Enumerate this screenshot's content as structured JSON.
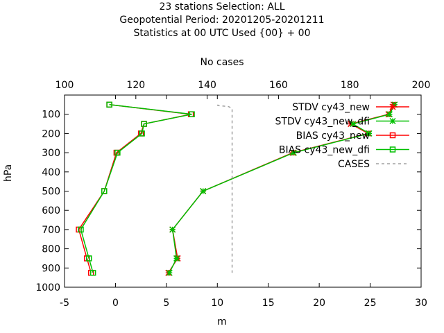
{
  "chart_data": {
    "type": "line",
    "title": [
      "23 stations Selection: ALL",
      "Geopotential  Period: 20201205-20201211",
      "Statistics at 00 UTC  Used {00} + 00"
    ],
    "xlabel": "m",
    "ylabel": "hPa",
    "x2label": "No cases",
    "xlim": [
      -5,
      30
    ],
    "x2lim": [
      100,
      200
    ],
    "ylim": [
      1000,
      0
    ],
    "xticks": [
      -5,
      0,
      5,
      10,
      15,
      20,
      25,
      30
    ],
    "x2ticks": [
      100,
      120,
      140,
      160,
      180,
      200
    ],
    "yticks": [
      100,
      200,
      300,
      400,
      500,
      600,
      700,
      800,
      900,
      1000
    ],
    "legend_position": "top-right",
    "series": [
      {
        "name": "STDV cy43_new",
        "axis": "x",
        "color": "#ff0000",
        "marker": "star",
        "dash": "solid",
        "points": [
          [
            27.3,
            50
          ],
          [
            26.8,
            100
          ],
          [
            23.1,
            150
          ],
          [
            24.8,
            200
          ],
          [
            17.4,
            300
          ],
          [
            8.6,
            500
          ],
          [
            5.6,
            700
          ],
          [
            6.1,
            850
          ],
          [
            5.2,
            925
          ]
        ]
      },
      {
        "name": "STDV cy43_new_dfi",
        "axis": "x",
        "color": "#00c000",
        "marker": "star",
        "dash": "solid",
        "points": [
          [
            27.4,
            50
          ],
          [
            26.9,
            100
          ],
          [
            23.3,
            150
          ],
          [
            24.9,
            200
          ],
          [
            17.5,
            300
          ],
          [
            8.6,
            500
          ],
          [
            5.6,
            700
          ],
          [
            6.0,
            850
          ],
          [
            5.3,
            925
          ]
        ]
      },
      {
        "name": "BIAS cy43_new",
        "axis": "x",
        "color": "#ff0000",
        "marker": "square",
        "dash": "solid",
        "points": [
          [
            -0.6,
            50
          ],
          [
            7.4,
            100
          ],
          [
            2.8,
            150
          ],
          [
            2.5,
            200
          ],
          [
            0.1,
            300
          ],
          [
            -1.1,
            500
          ],
          [
            -3.6,
            700
          ],
          [
            -2.8,
            850
          ],
          [
            -2.4,
            925
          ]
        ]
      },
      {
        "name": "BIAS cy43_new_dfi",
        "axis": "x",
        "color": "#00c000",
        "marker": "square",
        "dash": "solid",
        "points": [
          [
            -0.6,
            50
          ],
          [
            7.5,
            100
          ],
          [
            2.8,
            150
          ],
          [
            2.6,
            200
          ],
          [
            0.2,
            300
          ],
          [
            -1.1,
            500
          ],
          [
            -3.4,
            700
          ],
          [
            -2.6,
            850
          ],
          [
            -2.2,
            925
          ]
        ]
      },
      {
        "name": "CASES",
        "axis": "x2",
        "color": "#a0a0a0",
        "marker": "none",
        "dash": "dashed",
        "points": [
          [
            143,
            50
          ],
          [
            143,
            55
          ],
          [
            146,
            60
          ],
          [
            147,
            70
          ],
          [
            147,
            80
          ],
          [
            147,
            90
          ],
          [
            147,
            100
          ],
          [
            147,
            200
          ],
          [
            147,
            300
          ],
          [
            147,
            500
          ],
          [
            147,
            700
          ],
          [
            147,
            850
          ],
          [
            147,
            925
          ]
        ]
      }
    ]
  }
}
